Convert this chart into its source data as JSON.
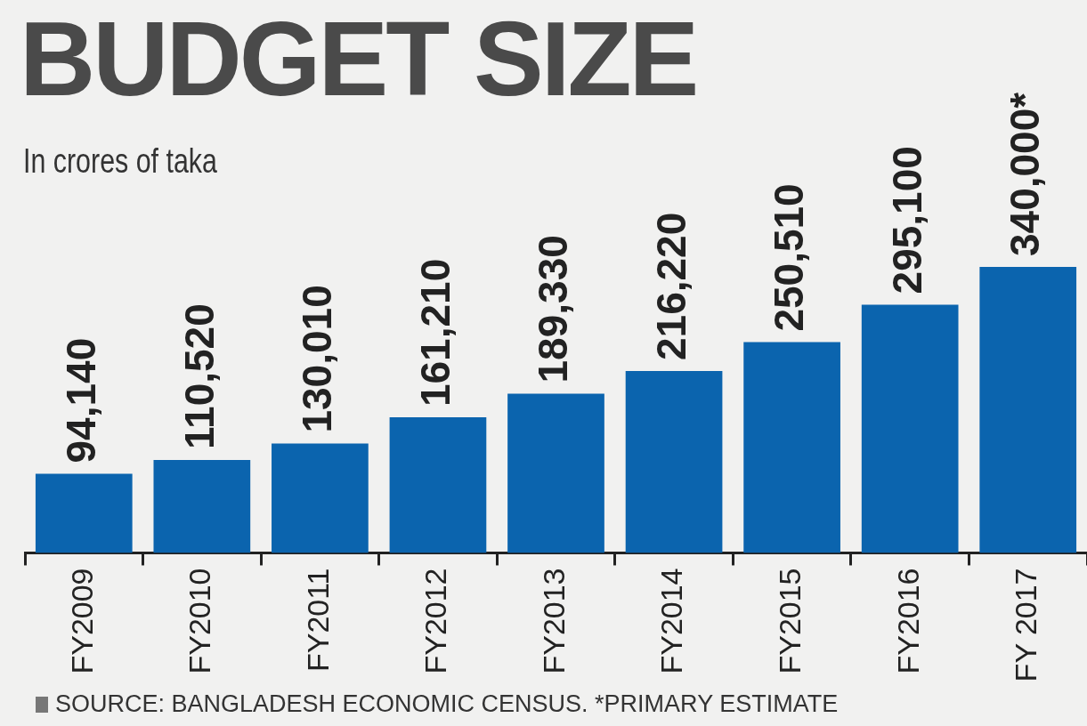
{
  "chart_data": {
    "type": "bar",
    "title": "BUDGET SIZE",
    "subtitle": "In crores of taka",
    "categories": [
      "FY2009",
      "FY2010",
      "FY2011",
      "FY2012",
      "FY2013",
      "FY2014",
      "FY2015",
      "FY2016",
      "FY 2017"
    ],
    "values": [
      94140,
      110520,
      130010,
      161210,
      189330,
      216220,
      250510,
      295100,
      340000
    ],
    "value_labels": [
      "94,140",
      "110,520",
      "130,010",
      "161,210",
      "189,330",
      "216,220",
      "250,510",
      "295,100",
      "340,000*"
    ],
    "color": "#0b64ae",
    "annotations": [
      "SOURCE: BANGLADESH ECONOMIC CENSUS. *PRIMARY ESTIMATE"
    ],
    "grid": false,
    "legend": false
  }
}
